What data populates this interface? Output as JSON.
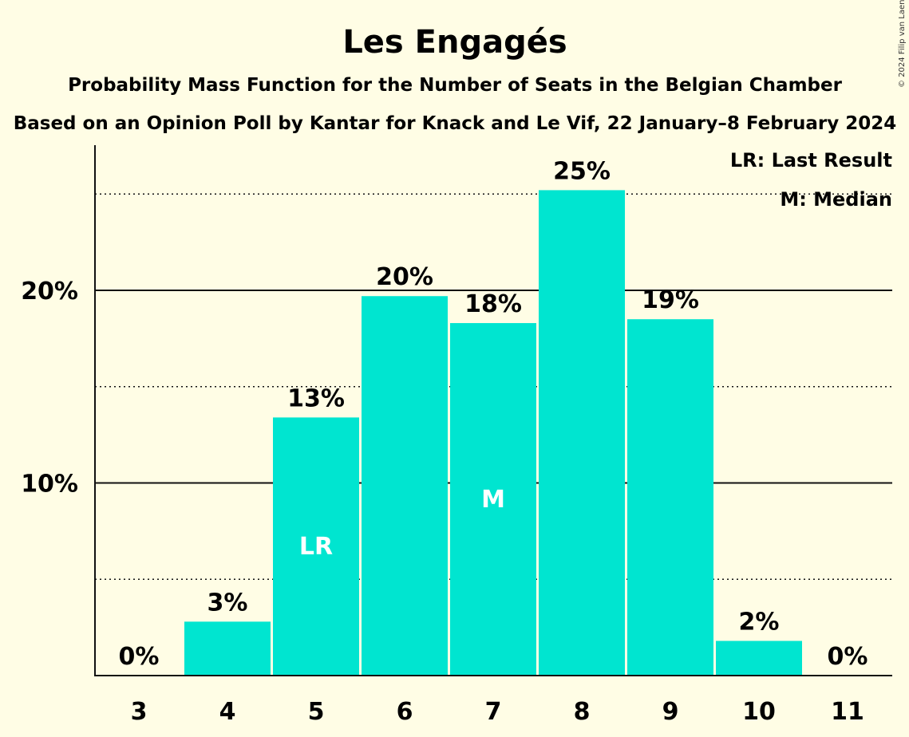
{
  "title": "Les Engagés",
  "subtitle1": "Probability Mass Function for the Number of Seats in the Belgian Chamber",
  "subtitle2": "Based on an Opinion Poll by Kantar for Knack and Le Vif, 22 January–8 February 2024",
  "copyright": "© 2024 Filip van Laenen",
  "legend": {
    "last_result": "LR: Last Result",
    "median": "M: Median"
  },
  "colors": {
    "background": "#FFFDE5",
    "bar": "#00E5D0",
    "text": "#111111",
    "inner_label": "#FFFFFF"
  },
  "chart_data": {
    "type": "bar",
    "categories": [
      "3",
      "4",
      "5",
      "6",
      "7",
      "8",
      "9",
      "10",
      "11"
    ],
    "values": [
      0,
      2.8,
      13.4,
      19.7,
      18.3,
      25.2,
      18.5,
      1.8,
      0
    ],
    "data_labels": [
      "0%",
      "3%",
      "13%",
      "20%",
      "18%",
      "25%",
      "19%",
      "2%",
      "0%"
    ],
    "inner_labels": [
      "",
      "",
      "LR",
      "",
      "M",
      "",
      "",
      "",
      ""
    ],
    "ylim": [
      0,
      27.5
    ],
    "yticks": [
      {
        "value": 10,
        "label": "10%",
        "style": "solid"
      },
      {
        "value": 20,
        "label": "20%",
        "style": "solid"
      }
    ],
    "dotted_gridlines": [
      5,
      15,
      25
    ],
    "grid": true,
    "legend_position": "top-right",
    "xlabel": "",
    "ylabel": ""
  }
}
